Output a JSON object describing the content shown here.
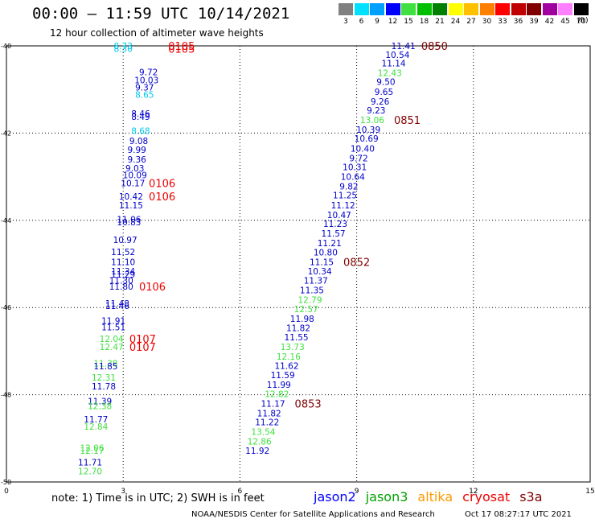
{
  "header": {
    "title": "00:00 – 11:59 UTC 10/14/2021",
    "subtitle": "12 hour collection of altimeter wave heights"
  },
  "color_scale": {
    "unit": "(ft)",
    "bins": [
      {
        "label": "3",
        "color": "#808080"
      },
      {
        "label": "6",
        "color": "#00e0ff"
      },
      {
        "label": "9",
        "color": "#00a0ff"
      },
      {
        "label": "12",
        "color": "#0000ff"
      },
      {
        "label": "15",
        "color": "#40e040"
      },
      {
        "label": "18",
        "color": "#00c000"
      },
      {
        "label": "21",
        "color": "#008000"
      },
      {
        "label": "24",
        "color": "#ffff00"
      },
      {
        "label": "27",
        "color": "#ffc000"
      },
      {
        "label": "30",
        "color": "#ff8000"
      },
      {
        "label": "33",
        "color": "#ff0000"
      },
      {
        "label": "36",
        "color": "#c00000"
      },
      {
        "label": "39",
        "color": "#800000"
      },
      {
        "label": "42",
        "color": "#a000a0"
      },
      {
        "label": "45",
        "color": "#ff80ff"
      },
      {
        "label": "70",
        "color": "#000000"
      }
    ]
  },
  "map": {
    "lon_ticks": [
      "0",
      "3",
      "6",
      "9",
      "12",
      "15"
    ],
    "lat_ticks": [
      "-40",
      "-42",
      "-44",
      "-46",
      "-48",
      "-50"
    ]
  },
  "observations": [
    {
      "lon": 3.0,
      "lat": -40.0,
      "value": "8.73",
      "sat": "cyan"
    },
    {
      "lon": 3.0,
      "lat": -40.06,
      "value": "8.30",
      "sat": "cyan"
    },
    {
      "lon": 3.65,
      "lat": -40.6,
      "value": "9.72",
      "sat": "blue"
    },
    {
      "lon": 3.6,
      "lat": -40.78,
      "value": "10.03",
      "sat": "blue"
    },
    {
      "lon": 3.55,
      "lat": -40.95,
      "value": "9.37",
      "sat": "blue"
    },
    {
      "lon": 3.55,
      "lat": -41.12,
      "value": "8.65",
      "sat": "cyan"
    },
    {
      "lon": 3.45,
      "lat": -41.55,
      "value": "8.46",
      "sat": "blue"
    },
    {
      "lon": 3.45,
      "lat": -41.62,
      "value": "8.49",
      "sat": "blue"
    },
    {
      "lon": 3.45,
      "lat": -41.95,
      "value": "8.68",
      "sat": "cyan"
    },
    {
      "lon": 3.4,
      "lat": -42.18,
      "value": "9.08",
      "sat": "blue"
    },
    {
      "lon": 3.35,
      "lat": -42.38,
      "value": "9.99",
      "sat": "blue"
    },
    {
      "lon": 3.35,
      "lat": -42.6,
      "value": "9.36",
      "sat": "blue"
    },
    {
      "lon": 3.3,
      "lat": -42.8,
      "value": "9.03",
      "sat": "blue"
    },
    {
      "lon": 3.3,
      "lat": -42.96,
      "value": "10.09",
      "sat": "blue"
    },
    {
      "lon": 3.25,
      "lat": -43.15,
      "value": "10.17",
      "sat": "blue"
    },
    {
      "lon": 3.2,
      "lat": -43.45,
      "value": "10.42",
      "sat": "blue"
    },
    {
      "lon": 3.2,
      "lat": -43.65,
      "value": "11.15",
      "sat": "blue"
    },
    {
      "lon": 3.15,
      "lat": -43.98,
      "value": "11.06",
      "sat": "blue"
    },
    {
      "lon": 3.15,
      "lat": -44.04,
      "value": "10.83",
      "sat": "blue"
    },
    {
      "lon": 3.05,
      "lat": -44.45,
      "value": "10.97",
      "sat": "blue"
    },
    {
      "lon": 3.0,
      "lat": -44.72,
      "value": "11.52",
      "sat": "blue"
    },
    {
      "lon": 3.0,
      "lat": -44.95,
      "value": "11.10",
      "sat": "blue"
    },
    {
      "lon": 3.0,
      "lat": -45.17,
      "value": "11.34",
      "sat": "blue"
    },
    {
      "lon": 3.0,
      "lat": -45.24,
      "value": "11.29",
      "sat": "blue"
    },
    {
      "lon": 2.95,
      "lat": -45.38,
      "value": "11.30",
      "sat": "blue"
    },
    {
      "lon": 2.95,
      "lat": -45.52,
      "value": "11.80",
      "sat": "blue"
    },
    {
      "lon": 2.85,
      "lat": -45.9,
      "value": "11.48",
      "sat": "blue"
    },
    {
      "lon": 2.85,
      "lat": -45.96,
      "value": "11.46",
      "sat": "blue"
    },
    {
      "lon": 2.75,
      "lat": -46.3,
      "value": "11.91",
      "sat": "blue"
    },
    {
      "lon": 2.75,
      "lat": -46.45,
      "value": "11.51",
      "sat": "blue"
    },
    {
      "lon": 2.7,
      "lat": -46.72,
      "value": "12.04",
      "sat": "green"
    },
    {
      "lon": 2.7,
      "lat": -46.9,
      "value": "12.47",
      "sat": "green"
    },
    {
      "lon": 2.55,
      "lat": -47.28,
      "value": "11.38",
      "sat": "green"
    },
    {
      "lon": 2.55,
      "lat": -47.34,
      "value": "11.85",
      "sat": "blue"
    },
    {
      "lon": 2.5,
      "lat": -47.6,
      "value": "12.31",
      "sat": "green"
    },
    {
      "lon": 2.5,
      "lat": -47.8,
      "value": "11.78",
      "sat": "blue"
    },
    {
      "lon": 2.4,
      "lat": -48.15,
      "value": "11.39",
      "sat": "blue"
    },
    {
      "lon": 2.4,
      "lat": -48.26,
      "value": "12.38",
      "sat": "green"
    },
    {
      "lon": 2.3,
      "lat": -48.56,
      "value": "11.77",
      "sat": "blue"
    },
    {
      "lon": 2.3,
      "lat": -48.73,
      "value": "12.84",
      "sat": "green"
    },
    {
      "lon": 2.2,
      "lat": -49.22,
      "value": "12.06",
      "sat": "green"
    },
    {
      "lon": 2.2,
      "lat": -49.28,
      "value": "12.17",
      "sat": "green"
    },
    {
      "lon": 2.15,
      "lat": -49.55,
      "value": "11.71",
      "sat": "blue"
    },
    {
      "lon": 2.15,
      "lat": -49.75,
      "value": "12.70",
      "sat": "green"
    },
    {
      "lon": 10.2,
      "lat": -40.0,
      "value": "11.41",
      "sat": "blue"
    },
    {
      "lon": 10.05,
      "lat": -40.2,
      "value": "10.54",
      "sat": "blue"
    },
    {
      "lon": 9.95,
      "lat": -40.4,
      "value": "11.14",
      "sat": "blue"
    },
    {
      "lon": 9.85,
      "lat": -40.62,
      "value": "12.43",
      "sat": "green"
    },
    {
      "lon": 9.75,
      "lat": -40.82,
      "value": "9.50",
      "sat": "blue"
    },
    {
      "lon": 9.7,
      "lat": -41.05,
      "value": "9.65",
      "sat": "blue"
    },
    {
      "lon": 9.6,
      "lat": -41.27,
      "value": "9.26",
      "sat": "blue"
    },
    {
      "lon": 9.5,
      "lat": -41.48,
      "value": "9.23",
      "sat": "blue"
    },
    {
      "lon": 9.4,
      "lat": -41.7,
      "value": "13.06",
      "sat": "green"
    },
    {
      "lon": 9.3,
      "lat": -41.92,
      "value": "10.39",
      "sat": "blue"
    },
    {
      "lon": 9.25,
      "lat": -42.12,
      "value": "10.69",
      "sat": "blue"
    },
    {
      "lon": 9.15,
      "lat": -42.35,
      "value": "10.40",
      "sat": "blue"
    },
    {
      "lon": 9.05,
      "lat": -42.57,
      "value": "9.72",
      "sat": "blue"
    },
    {
      "lon": 8.95,
      "lat": -42.78,
      "value": "10.31",
      "sat": "blue"
    },
    {
      "lon": 8.9,
      "lat": -43.0,
      "value": "10.64",
      "sat": "blue"
    },
    {
      "lon": 8.8,
      "lat": -43.22,
      "value": "9.82",
      "sat": "blue"
    },
    {
      "lon": 8.7,
      "lat": -43.42,
      "value": "11.25",
      "sat": "blue"
    },
    {
      "lon": 8.65,
      "lat": -43.65,
      "value": "11.12",
      "sat": "blue"
    },
    {
      "lon": 8.55,
      "lat": -43.87,
      "value": "10.47",
      "sat": "blue"
    },
    {
      "lon": 8.45,
      "lat": -44.08,
      "value": "11.23",
      "sat": "blue"
    },
    {
      "lon": 8.4,
      "lat": -44.3,
      "value": "11.57",
      "sat": "blue"
    },
    {
      "lon": 8.3,
      "lat": -44.52,
      "value": "11.21",
      "sat": "blue"
    },
    {
      "lon": 8.2,
      "lat": -44.73,
      "value": "10.80",
      "sat": "blue"
    },
    {
      "lon": 8.1,
      "lat": -44.95,
      "value": "11.15",
      "sat": "blue"
    },
    {
      "lon": 8.05,
      "lat": -45.17,
      "value": "10.34",
      "sat": "blue"
    },
    {
      "lon": 7.95,
      "lat": -45.38,
      "value": "11.37",
      "sat": "blue"
    },
    {
      "lon": 7.85,
      "lat": -45.6,
      "value": "11.35",
      "sat": "blue"
    },
    {
      "lon": 7.8,
      "lat": -45.82,
      "value": "12.79",
      "sat": "green"
    },
    {
      "lon": 7.7,
      "lat": -46.03,
      "value": "12.57",
      "sat": "green"
    },
    {
      "lon": 7.6,
      "lat": -46.25,
      "value": "11.98",
      "sat": "blue"
    },
    {
      "lon": 7.5,
      "lat": -46.47,
      "value": "11.82",
      "sat": "blue"
    },
    {
      "lon": 7.45,
      "lat": -46.68,
      "value": "11.55",
      "sat": "blue"
    },
    {
      "lon": 7.35,
      "lat": -46.9,
      "value": "13.73",
      "sat": "green"
    },
    {
      "lon": 7.25,
      "lat": -47.12,
      "value": "12.16",
      "sat": "green"
    },
    {
      "lon": 7.2,
      "lat": -47.33,
      "value": "11.62",
      "sat": "blue"
    },
    {
      "lon": 7.1,
      "lat": -47.55,
      "value": "11.59",
      "sat": "blue"
    },
    {
      "lon": 7.0,
      "lat": -47.77,
      "value": "11.99",
      "sat": "blue"
    },
    {
      "lon": 6.95,
      "lat": -47.98,
      "value": "12.82",
      "sat": "green"
    },
    {
      "lon": 6.85,
      "lat": -48.2,
      "value": "11.17",
      "sat": "blue"
    },
    {
      "lon": 6.75,
      "lat": -48.42,
      "value": "11.82",
      "sat": "blue"
    },
    {
      "lon": 6.7,
      "lat": -48.63,
      "value": "11.22",
      "sat": "blue"
    },
    {
      "lon": 6.6,
      "lat": -48.85,
      "value": "13.54",
      "sat": "green"
    },
    {
      "lon": 6.5,
      "lat": -49.07,
      "value": "12.86",
      "sat": "green"
    },
    {
      "lon": 6.45,
      "lat": -49.28,
      "value": "11.92",
      "sat": "blue"
    }
  ],
  "time_stamps": [
    {
      "lon": 4.5,
      "lat": -40.0,
      "label": "0105",
      "color": "red"
    },
    {
      "lon": 4.5,
      "lat": -40.06,
      "label": "0105",
      "color": "red"
    },
    {
      "lon": 4.0,
      "lat": -43.15,
      "label": "0106",
      "color": "red"
    },
    {
      "lon": 4.0,
      "lat": -43.45,
      "label": "0106",
      "color": "red"
    },
    {
      "lon": 3.75,
      "lat": -45.52,
      "label": "0106",
      "color": "red"
    },
    {
      "lon": 3.5,
      "lat": -46.72,
      "label": "0107",
      "color": "red"
    },
    {
      "lon": 3.5,
      "lat": -46.9,
      "label": "0107",
      "color": "red"
    },
    {
      "lon": 11.0,
      "lat": -40.0,
      "label": "0850",
      "color": "darkred"
    },
    {
      "lon": 10.3,
      "lat": -41.7,
      "label": "0851",
      "color": "darkred"
    },
    {
      "lon": 9.0,
      "lat": -44.95,
      "label": "0852",
      "color": "darkred"
    },
    {
      "lon": 7.75,
      "lat": -48.2,
      "label": "0853",
      "color": "darkred"
    }
  ],
  "colors": {
    "blue": "#0000cc",
    "green": "#40e040",
    "cyan": "#00c8e8",
    "red": "#ee0000",
    "darkred": "#800000"
  },
  "footer": {
    "note": "note:  1) Time is in UTC;  2) SWH is in feet",
    "legend": [
      {
        "name": "jason2",
        "color": "#0000ff"
      },
      {
        "name": "jason3",
        "color": "#00a000"
      },
      {
        "name": "altika",
        "color": "#ff9900"
      },
      {
        "name": "cryosat",
        "color": "#ee0000"
      },
      {
        "name": "s3a",
        "color": "#800000"
      }
    ],
    "credit": "NOAA/NESDIS Center for Satellite Applications and Research",
    "timestamp": "Oct 17 08:27:17 UTC 2021"
  }
}
